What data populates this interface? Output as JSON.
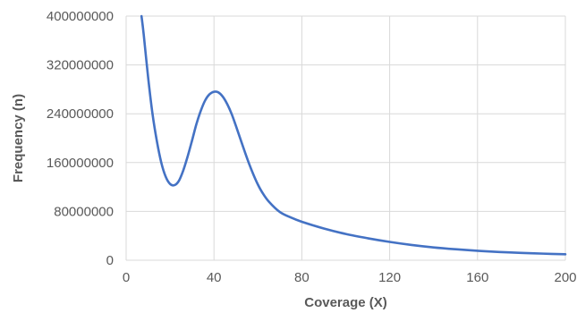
{
  "chart_data": {
    "type": "line",
    "title": "",
    "xlabel": "Coverage (X)",
    "ylabel": "Frequency (n)",
    "xlim": [
      0,
      200
    ],
    "ylim": [
      0,
      400000000
    ],
    "x_ticks": [
      0,
      40,
      80,
      120,
      160,
      200
    ],
    "y_ticks": [
      0,
      80000000,
      160000000,
      240000000,
      320000000,
      400000000
    ],
    "x_tick_labels": [
      "0",
      "40",
      "80",
      "120",
      "160",
      "200"
    ],
    "y_tick_labels": [
      "0",
      "80000000",
      "160000000",
      "240000000",
      "320000000",
      "400000000"
    ],
    "grid": true,
    "legend": "none",
    "series_color": "#4472c4",
    "series": [
      {
        "x": [
          7,
          8,
          10,
          12,
          14,
          16,
          18,
          20,
          22,
          24,
          26,
          28,
          30,
          32,
          34,
          36,
          38,
          40,
          42,
          44,
          46,
          48,
          50,
          52,
          54,
          56,
          58,
          60,
          62,
          65,
          70,
          75,
          80,
          90,
          100,
          110,
          120,
          130,
          140,
          150,
          160,
          170,
          180,
          190,
          200
        ],
        "values": [
          400000000,
          370000000,
          300000000,
          240000000,
          195000000,
          160000000,
          137000000,
          125000000,
          123000000,
          130000000,
          147000000,
          170000000,
          196000000,
          223000000,
          245000000,
          262000000,
          272000000,
          276000000,
          275000000,
          268000000,
          256000000,
          240000000,
          220000000,
          199000000,
          178000000,
          158000000,
          140000000,
          124000000,
          111000000,
          96000000,
          79000000,
          70000000,
          63000000,
          52000000,
          43000000,
          36000000,
          30000000,
          25000000,
          21000000,
          18000000,
          15500000,
          13500000,
          12000000,
          10800000,
          9800000
        ]
      }
    ]
  }
}
